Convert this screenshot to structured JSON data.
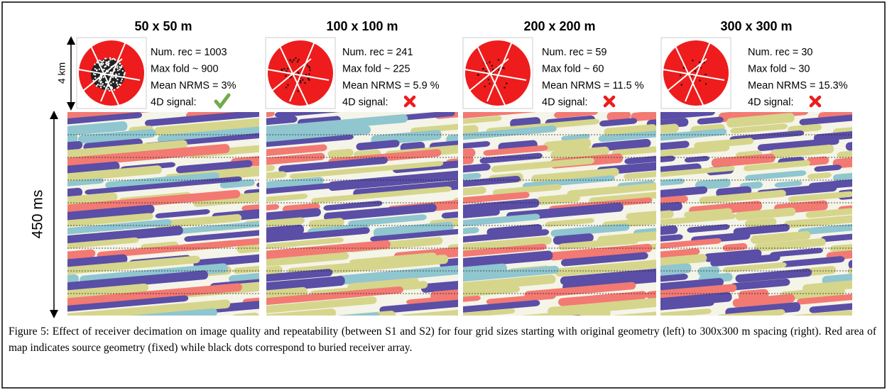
{
  "panels": [
    {
      "title": "50 x 50 m",
      "stats": [
        "Num. rec = 1003",
        "Max fold ~ 900",
        "Mean NRMS = 3%"
      ],
      "signal_label": "4D signal:",
      "signal_ok": true
    },
    {
      "title": "100 x 100 m",
      "stats": [
        "Num. rec = 241",
        "Max fold ~ 225",
        "Mean NRMS = 5.9 %"
      ],
      "signal_label": "4D signal:",
      "signal_ok": false
    },
    {
      "title": "200 x 200 m",
      "stats": [
        "Num. rec = 59",
        "Max fold ~ 60",
        "Mean NRMS = 11.5 %"
      ],
      "signal_label": "4D signal:",
      "signal_ok": false
    },
    {
      "title": "300 x 300 m",
      "stats": [
        "Num. rec = 30",
        "Max fold ~ 30",
        "Mean NRMS = 15.3%"
      ],
      "signal_label": "4D signal:",
      "signal_ok": false
    }
  ],
  "map_scale_label": "4 km",
  "time_scale_label": "450 ms",
  "caption": "Figure 5: Effect of receiver decimation on image quality and repeatability (between S1 and S2) for four grid sizes starting with original geometry (left) to 300x300 m spacing (right). Red area of map indicates source geometry (fixed) while black dots correspond to buried receiver array."
}
